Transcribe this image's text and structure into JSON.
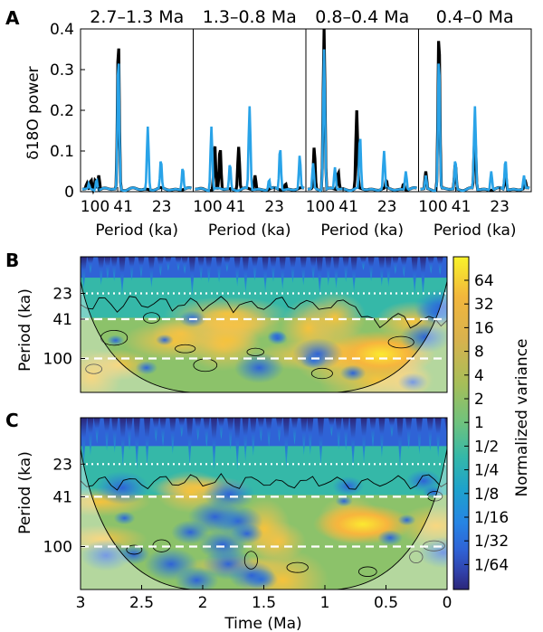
{
  "chart_data": [
    {
      "panel": "A",
      "type": "line",
      "ylabel": "δ18O power",
      "ylim": [
        0,
        0.4
      ],
      "yticks": [
        "0",
        "0.1",
        "0.2",
        "0.3",
        "0.4"
      ],
      "xticks": [
        "100",
        "41",
        "23"
      ],
      "xlabel": "Period (ka)",
      "colors": {
        "thick": "#000000",
        "thin": "#29a3e8"
      },
      "subpanels": [
        {
          "title": "2.7–1.3 Ma",
          "black_peaks": [
            [
              0.04,
              0.02
            ],
            [
              0.08,
              0.03
            ],
            [
              0.12,
              0.03
            ],
            [
              0.15,
              0.04
            ],
            [
              0.33,
              0.38
            ],
            [
              0.72,
              0.01
            ]
          ],
          "blue_peaks": [
            [
              0.06,
              0.02
            ],
            [
              0.13,
              0.03
            ],
            [
              0.33,
              0.34
            ],
            [
              0.6,
              0.16
            ],
            [
              0.72,
              0.08
            ],
            [
              0.92,
              0.06
            ]
          ]
        },
        {
          "title": "1.3–0.8 Ma",
          "black_peaks": [
            [
              0.18,
              0.12
            ],
            [
              0.23,
              0.11
            ],
            [
              0.4,
              0.11
            ],
            [
              0.55,
              0.04
            ],
            [
              0.83,
              0.02
            ]
          ],
          "blue_peaks": [
            [
              0.15,
              0.16
            ],
            [
              0.32,
              0.07
            ],
            [
              0.5,
              0.21
            ],
            [
              0.68,
              0.03
            ],
            [
              0.78,
              0.11
            ],
            [
              0.96,
              0.09
            ]
          ]
        },
        {
          "title": "0.8–0.4 Ma",
          "black_peaks": [
            [
              0.06,
              0.11
            ],
            [
              0.15,
              0.4
            ],
            [
              0.28,
              0.05
            ],
            [
              0.45,
              0.2
            ],
            [
              0.72,
              0.03
            ],
            [
              0.88,
              0.02
            ]
          ],
          "blue_peaks": [
            [
              0.05,
              0.07
            ],
            [
              0.15,
              0.35
            ],
            [
              0.25,
              0.06
            ],
            [
              0.48,
              0.14
            ],
            [
              0.7,
              0.1
            ],
            [
              0.9,
              0.05
            ]
          ]
        },
        {
          "title": "0.4–0 Ma",
          "black_peaks": [
            [
              0.05,
              0.05
            ],
            [
              0.17,
              0.4
            ],
            [
              0.32,
              0.07
            ],
            [
              0.5,
              0.15
            ],
            [
              0.78,
              0.05
            ],
            [
              0.96,
              0.03
            ]
          ],
          "blue_peaks": [
            [
              0.05,
              0.04
            ],
            [
              0.17,
              0.34
            ],
            [
              0.32,
              0.08
            ],
            [
              0.5,
              0.21
            ],
            [
              0.65,
              0.05
            ],
            [
              0.78,
              0.08
            ],
            [
              0.95,
              0.04
            ]
          ]
        }
      ]
    },
    {
      "panel": "B",
      "type": "heatmap",
      "ylabel": "Period (ka)",
      "yticks": [
        "23",
        "41",
        "100"
      ],
      "reference_lines": [
        "23",
        "41",
        "100"
      ]
    },
    {
      "panel": "C",
      "type": "heatmap",
      "ylabel": "Period (ka)",
      "yticks": [
        "23",
        "41",
        "100"
      ],
      "xlabel": "Time (Ma)",
      "xticks": [
        "3",
        "2.5",
        "2",
        "1.5",
        "1",
        "0.5",
        "0"
      ],
      "reference_lines": [
        "23",
        "41",
        "100"
      ]
    }
  ],
  "colorbar": {
    "label": "Normalized variance",
    "tick_labels": [
      "64",
      "32",
      "16",
      "8",
      "4",
      "2",
      "1",
      "1/2",
      "1/4",
      "1/8",
      "1/16",
      "1/32",
      "1/64"
    ],
    "colors": [
      "#f8f32a",
      "#f2b63c",
      "#d8b24e",
      "#a7be58",
      "#6ec27e",
      "#35b8a8",
      "#1ea2cc",
      "#2684e4",
      "#2f63d6",
      "#3140a8",
      "#2b2679"
    ]
  }
}
